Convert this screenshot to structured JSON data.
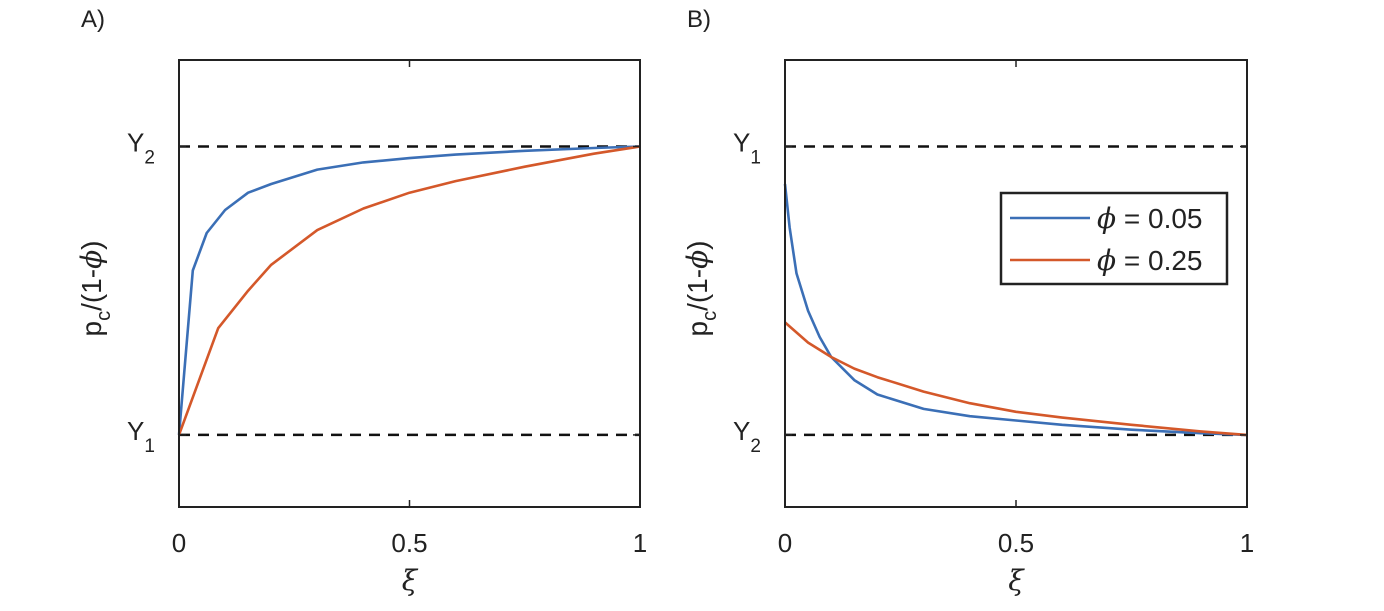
{
  "colors": {
    "series1": "#3b6fb6",
    "series2": "#d4582a",
    "axis": "#222222",
    "reference": "#111111"
  },
  "chart_data": [
    {
      "type": "line",
      "panel_label": "A)",
      "xlabel": "ξ",
      "ylabel": {
        "main": "p",
        "sub": "c",
        "rest": "/(1-",
        "greek": "ϕ",
        "close": ")"
      },
      "xlim": [
        0,
        1
      ],
      "ylim": [
        -0.25,
        1.3
      ],
      "xticks": [
        {
          "value": 0,
          "label": "0"
        },
        {
          "value": 0.5,
          "label": "0.5"
        },
        {
          "value": 1,
          "label": "1"
        }
      ],
      "yticks": [
        {
          "value": 0,
          "label": "Y",
          "sub": "1"
        },
        {
          "value": 1,
          "label": "Y",
          "sub": "2"
        }
      ],
      "reference_lines": [
        0,
        1
      ],
      "grid": false,
      "series": [
        {
          "color": "#3b6fb6",
          "x": [
            0,
            0.03,
            0.06,
            0.1,
            0.15,
            0.2,
            0.3,
            0.4,
            0.5,
            0.6,
            0.75,
            0.9,
            1
          ],
          "y": [
            0,
            0.57,
            0.7,
            0.78,
            0.84,
            0.87,
            0.92,
            0.945,
            0.96,
            0.972,
            0.985,
            0.995,
            1
          ]
        },
        {
          "color": "#d4582a",
          "x": [
            0,
            0.085,
            0.15,
            0.2,
            0.3,
            0.4,
            0.5,
            0.6,
            0.75,
            0.9,
            1
          ],
          "y": [
            0,
            0.37,
            0.5,
            0.59,
            0.71,
            0.785,
            0.84,
            0.88,
            0.93,
            0.975,
            1
          ]
        }
      ]
    },
    {
      "type": "line",
      "panel_label": "B)",
      "xlabel": "ξ",
      "ylabel": {
        "main": "p",
        "sub": "c",
        "rest": "/(1-",
        "greek": "ϕ",
        "close": ")"
      },
      "xlim": [
        0,
        1
      ],
      "ylim": [
        -0.25,
        1.3
      ],
      "xticks": [
        {
          "value": 0,
          "label": "0"
        },
        {
          "value": 0.5,
          "label": "0.5"
        },
        {
          "value": 1,
          "label": "1"
        }
      ],
      "yticks": [
        {
          "value": 0,
          "label": "Y",
          "sub": "2"
        },
        {
          "value": 1,
          "label": "Y",
          "sub": "1"
        }
      ],
      "reference_lines": [
        0,
        1
      ],
      "grid": false,
      "legend": {
        "position": "top-right",
        "entries": [
          {
            "greek": "ϕ",
            "text": " = 0.05",
            "color": "#3b6fb6"
          },
          {
            "greek": "ϕ",
            "text": " = 0.25",
            "color": "#d4582a"
          }
        ]
      },
      "series": [
        {
          "color": "#3b6fb6",
          "x": [
            0,
            0.01,
            0.025,
            0.05,
            0.075,
            0.1,
            0.15,
            0.2,
            0.3,
            0.4,
            0.5,
            0.6,
            0.75,
            0.9,
            1
          ],
          "y": [
            0.87,
            0.72,
            0.56,
            0.43,
            0.34,
            0.27,
            0.19,
            0.14,
            0.09,
            0.065,
            0.05,
            0.035,
            0.018,
            0.006,
            0
          ]
        },
        {
          "color": "#d4582a",
          "x": [
            0,
            0.05,
            0.1,
            0.15,
            0.2,
            0.3,
            0.4,
            0.5,
            0.6,
            0.75,
            0.9,
            1
          ],
          "y": [
            0.39,
            0.32,
            0.27,
            0.23,
            0.2,
            0.15,
            0.11,
            0.08,
            0.06,
            0.035,
            0.012,
            0
          ]
        }
      ]
    }
  ]
}
